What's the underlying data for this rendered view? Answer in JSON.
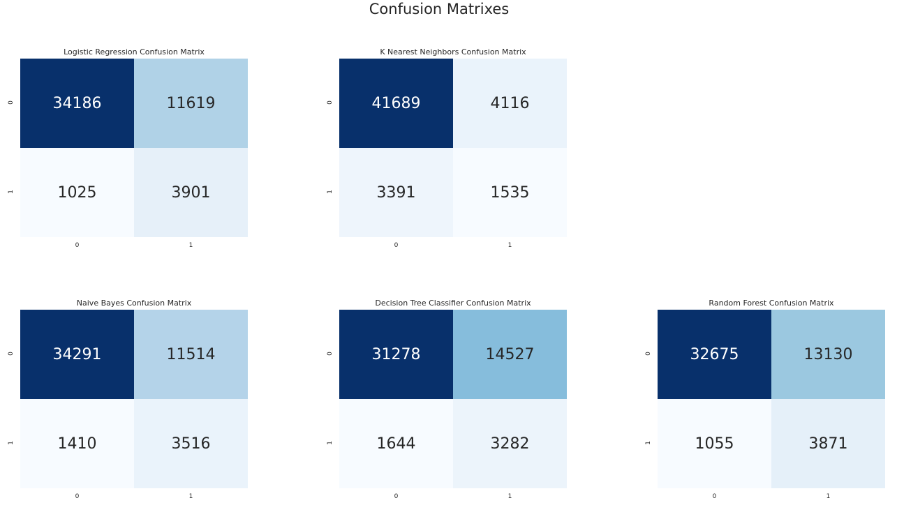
{
  "suptitle": "Confusion Matrixes",
  "chart_data": [
    {
      "type": "heatmap",
      "title": "Logistic Regression Confusion Matrix",
      "xticks": [
        "0",
        "1"
      ],
      "yticks": [
        "0",
        "1"
      ],
      "matrix": [
        [
          34186,
          11619
        ],
        [
          1025,
          3901
        ]
      ],
      "colormap": "Blues",
      "colorbar": false,
      "grid_position": [
        0,
        0
      ]
    },
    {
      "type": "heatmap",
      "title": "K Nearest Neighbors Confusion Matrix",
      "xticks": [
        "0",
        "1"
      ],
      "yticks": [
        "0",
        "1"
      ],
      "matrix": [
        [
          41689,
          4116
        ],
        [
          3391,
          1535
        ]
      ],
      "colormap": "Blues",
      "colorbar": false,
      "grid_position": [
        0,
        1
      ]
    },
    {
      "type": "heatmap",
      "title": "Naive Bayes Confusion Matrix",
      "xticks": [
        "0",
        "1"
      ],
      "yticks": [
        "0",
        "1"
      ],
      "matrix": [
        [
          34291,
          11514
        ],
        [
          1410,
          3516
        ]
      ],
      "colormap": "Blues",
      "colorbar": false,
      "grid_position": [
        1,
        0
      ]
    },
    {
      "type": "heatmap",
      "title": "Decision Tree Classifier Confusion Matrix",
      "xticks": [
        "0",
        "1"
      ],
      "yticks": [
        "0",
        "1"
      ],
      "matrix": [
        [
          31278,
          14527
        ],
        [
          1644,
          3282
        ]
      ],
      "colormap": "Blues",
      "colorbar": false,
      "grid_position": [
        1,
        1
      ]
    },
    {
      "type": "heatmap",
      "title": "Random Forest Confusion Matrix",
      "xticks": [
        "0",
        "1"
      ],
      "yticks": [
        "0",
        "1"
      ],
      "matrix": [
        [
          32675,
          13130
        ],
        [
          1055,
          3871
        ]
      ],
      "colormap": "Blues",
      "colorbar": false,
      "grid_position": [
        1,
        2
      ]
    }
  ]
}
